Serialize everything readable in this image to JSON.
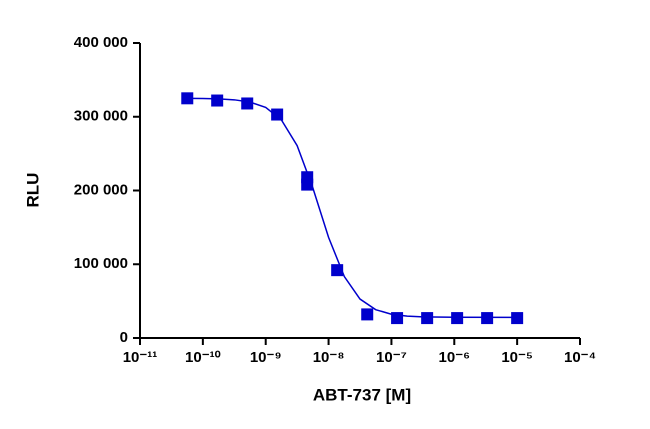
{
  "chart_data": {
    "type": "scatter",
    "xlabel": "ABT-737 [M]",
    "ylabel": "RLU",
    "xscale": "log",
    "xlim": [
      1e-11,
      0.0001
    ],
    "xticks": [
      {
        "value": 1e-11,
        "label": "10⁻¹¹"
      },
      {
        "value": 1e-10,
        "label": "10⁻¹⁰"
      },
      {
        "value": 1e-09,
        "label": "10⁻⁹"
      },
      {
        "value": 1e-08,
        "label": "10⁻⁸"
      },
      {
        "value": 1e-07,
        "label": "10⁻⁷"
      },
      {
        "value": 1e-06,
        "label": "10⁻⁶"
      },
      {
        "value": 1e-05,
        "label": "10⁻⁵"
      },
      {
        "value": 0.0001,
        "label": "10⁻⁴"
      }
    ],
    "ylim": [
      0,
      400000
    ],
    "yticks": [
      0,
      {
        "value": 100000,
        "label": "100 000"
      },
      {
        "value": 200000,
        "label": "200 000"
      },
      {
        "value": 300000,
        "label": "300 000"
      },
      {
        "value": 400000,
        "label": "400 000"
      }
    ],
    "series": [
      {
        "type": "scatter",
        "marker": "square",
        "color": "#0000cc",
        "x": [
          5.65e-11,
          1.69e-10,
          5.08e-10,
          1.52e-09,
          4.57e-09,
          4.57e-09,
          1.37e-08,
          4.12e-08,
          1.23e-07,
          3.7e-07,
          1.11e-06,
          3.33e-06,
          1e-05
        ],
        "values": [
          325000,
          322000,
          318000,
          303000,
          218000,
          208000,
          92000,
          32000,
          27000,
          27000,
          27000,
          27000,
          27000
        ]
      },
      {
        "type": "line",
        "color": "#0000cc",
        "x": [
          5.62e-11,
          1e-10,
          1.78e-10,
          3.16e-10,
          5.62e-10,
          1e-09,
          1.78e-09,
          3.16e-09,
          5.62e-09,
          1e-08,
          1.78e-08,
          3.16e-08,
          5.62e-08,
          1e-07,
          1.78e-07,
          3.16e-07,
          1e-06,
          1e-05
        ],
        "values": [
          324870,
          324670,
          324200,
          322960,
          319920,
          312580,
          295660,
          260850,
          203530,
          136470,
          83360,
          52830,
          38400,
          32230,
          29700,
          28680,
          28100,
          28000
        ]
      }
    ]
  }
}
